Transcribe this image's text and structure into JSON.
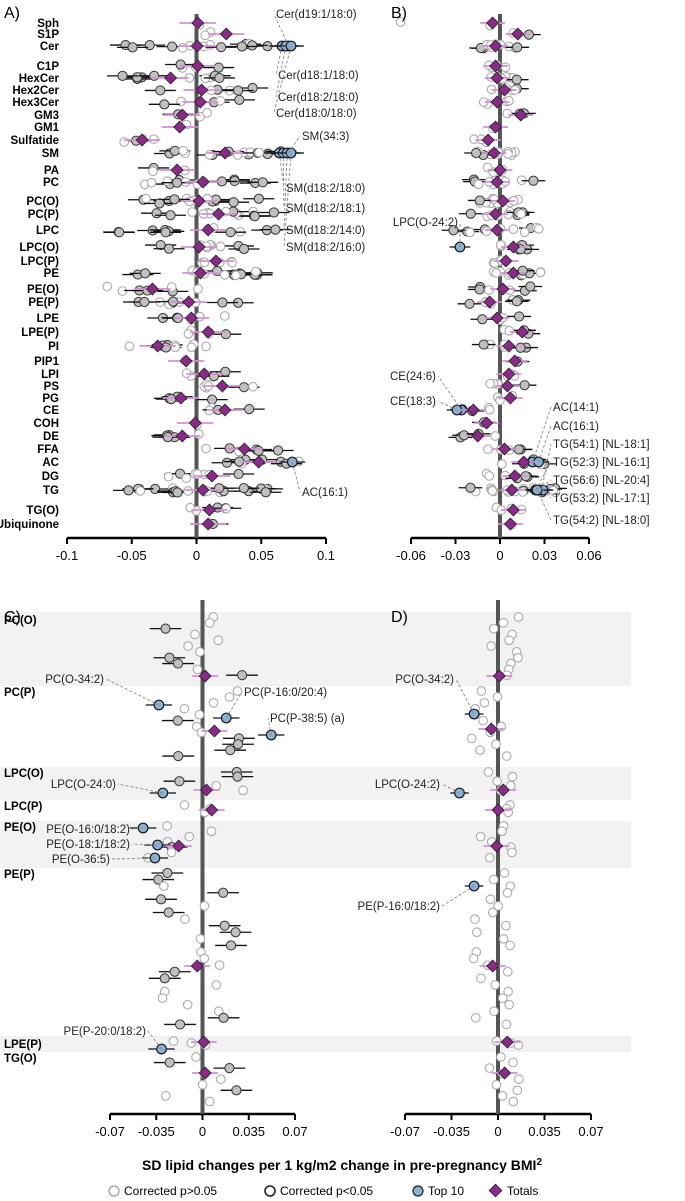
{
  "chart_data": {
    "type": "scatter",
    "title": "SD lipid changes per 1 kg/m2 change in pre-pregnancy BMI",
    "xlabel": "SD lipid changes per 1 kg/m2 change in pre-pregnancy BMI",
    "xlabel_sup": "2",
    "legend": [
      {
        "key": "ns",
        "label": "Corrected p>0.05"
      },
      {
        "key": "sig",
        "label": "Corrected p<0.05"
      },
      {
        "key": "top",
        "label": "Top 10"
      },
      {
        "key": "total",
        "label": "Totals"
      }
    ],
    "colors": {
      "top": "#8ab0d6",
      "sig": "#c0c0c0",
      "total": "#8b2a8b",
      "ci_total": "#d48fd4",
      "axis": "#555555"
    },
    "panels": [
      {
        "id": "A",
        "label": "A)",
        "xlim": [
          -0.1,
          0.1
        ],
        "xticks": [
          -0.1,
          -0.05,
          0,
          0.05,
          0.1
        ],
        "xtick_labels": [
          "-0.1",
          "-0.05",
          "0",
          "0.05",
          "0.1"
        ],
        "classes": [
          "Sph",
          "S1P",
          "Cer",
          "C1P",
          "HexCer",
          "Hex2Cer",
          "Hex3Cer",
          "GM3",
          "GM1",
          "Sulfatide",
          "SM",
          "PA",
          "PC",
          "PC(O)",
          "PC(P)",
          "LPC",
          "LPC(O)",
          "LPC(P)",
          "PE",
          "PE(O)",
          "PE(P)",
          "LPE",
          "LPE(P)",
          "PI",
          "PIP1",
          "LPI",
          "PS",
          "PG",
          "CE",
          "COH",
          "DE",
          "FFA",
          "AC",
          "DG",
          "TG",
          "TG(O)",
          "Ubiquinone"
        ],
        "totals": [
          0.001,
          0.023,
          0.0005,
          0.001,
          -0.02,
          0.004,
          0.003,
          -0.011,
          -0.013,
          -0.042,
          0.022,
          -0.015,
          0.005,
          0.002,
          0.017,
          0.009,
          0.002,
          0.015,
          0.003,
          -0.034,
          -0.006,
          -0.004,
          0.009,
          -0.03,
          -0.008,
          0.006,
          0.02,
          -0.012,
          0.022,
          -0.001,
          -0.011,
          0.037,
          0.048,
          0.012,
          0.005,
          0.01,
          0.009
        ],
        "spread": [
          0.004,
          0.03,
          0.06,
          0.03,
          0.04,
          0.04,
          0.035,
          0.02,
          0.01,
          0.02,
          0.05,
          0.035,
          0.05,
          0.05,
          0.05,
          0.07,
          0.04,
          0.02,
          0.05,
          0.04,
          0.04,
          0.03,
          0.02,
          0.04,
          0.005,
          0.02,
          0.03,
          0.025,
          0.02,
          0.005,
          0.02,
          0.03,
          0.035,
          0.035,
          0.06,
          0.015,
          0.005
        ],
        "counts": [
          1,
          2,
          14,
          4,
          10,
          6,
          5,
          3,
          1,
          4,
          16,
          3,
          14,
          14,
          14,
          12,
          10,
          5,
          16,
          8,
          10,
          6,
          5,
          9,
          1,
          4,
          6,
          4,
          4,
          1,
          5,
          6,
          8,
          8,
          24,
          5,
          1
        ],
        "highlights": [
          {
            "label": "Cer(d19:1/18:0)",
            "cls": "Cer",
            "x": 0.071
          },
          {
            "label": "Cer(d18:1/18:0)",
            "cls": "Cer",
            "x": 0.066
          },
          {
            "label": "Cer(d18:2/18:0)",
            "cls": "Cer",
            "x": 0.069
          },
          {
            "label": "Cer(d18:0/18:0)",
            "cls": "Cer",
            "x": 0.073
          },
          {
            "label": "SM(34:3)",
            "cls": "SM",
            "x": 0.071
          },
          {
            "label": "SM(d18:2/18:0)",
            "cls": "SM",
            "x": 0.064
          },
          {
            "label": "SM(d18:2/18:1)",
            "cls": "SM",
            "x": 0.067
          },
          {
            "label": "SM(d18:2/14:0)",
            "cls": "SM",
            "x": 0.07
          },
          {
            "label": "SM(d18:2/16:0)",
            "cls": "SM",
            "x": 0.073
          },
          {
            "label": "AC(16:1)",
            "cls": "AC",
            "x": 0.074
          }
        ]
      },
      {
        "id": "B",
        "label": "B)",
        "xlim": [
          -0.06,
          0.06
        ],
        "xticks": [
          -0.06,
          -0.03,
          0,
          0.03,
          0.06
        ],
        "xtick_labels": [
          "-0.06",
          "-0.03",
          "0",
          "0.03",
          "0.06"
        ],
        "totals": [
          -0.005,
          0.012,
          -0.003,
          -0.003,
          -0.002,
          0.003,
          -0.002,
          0.014,
          -0.003,
          -0.008,
          -0.004,
          0,
          -0.002,
          0.002,
          -0.003,
          -0.002,
          0.009,
          0.004,
          0.009,
          0.002,
          -0.007,
          -0.002,
          0.015,
          0.006,
          0.01,
          0.006,
          0.005,
          0.007,
          -0.018,
          -0.009,
          -0.015,
          0.003,
          0.016,
          0.01,
          0.008,
          0.009,
          0.007
        ],
        "spread": [
          0.004,
          0.01,
          0.015,
          0.01,
          0.015,
          0.01,
          0.01,
          0.01,
          0.004,
          0.01,
          0.015,
          0.01,
          0.025,
          0.02,
          0.02,
          0.03,
          0.02,
          0.012,
          0.02,
          0.02,
          0.02,
          0.015,
          0.015,
          0.02,
          0.005,
          0.012,
          0.012,
          0.012,
          0.012,
          0.004,
          0.012,
          0.02,
          0.02,
          0.02,
          0.03,
          0.012,
          0.005
        ],
        "counts": [
          1,
          2,
          10,
          4,
          8,
          5,
          4,
          3,
          1,
          3,
          12,
          3,
          12,
          12,
          12,
          12,
          8,
          4,
          12,
          6,
          8,
          5,
          4,
          7,
          1,
          3,
          5,
          3,
          4,
          1,
          4,
          5,
          6,
          6,
          20,
          4,
          1
        ],
        "highlights": [
          {
            "label": "LPC(O-24:2)",
            "cls": "LPC(O)",
            "x": -0.027
          },
          {
            "label": "CE(24:6)",
            "cls": "CE",
            "x": -0.026
          },
          {
            "label": "CE(18:3)",
            "cls": "CE",
            "x": -0.029
          },
          {
            "label": "AC(14:1)",
            "cls": "AC",
            "x": 0.022
          },
          {
            "label": "AC(16:1)",
            "cls": "AC",
            "x": 0.026
          },
          {
            "label": "TG(54:1) [NL-18:1]",
            "cls": "TG",
            "x": 0.028
          },
          {
            "label": "TG(52:3) [NL-16:1]",
            "cls": "TG",
            "x": 0.024
          },
          {
            "label": "TG(56:6) [NL-20:4]",
            "cls": "TG",
            "x": 0.026
          },
          {
            "label": "TG(53:2) [NL-17:1]",
            "cls": "TG",
            "x": 0.029
          },
          {
            "label": "TG(54:2) [NL-18:0]",
            "cls": "TG",
            "x": 0.025
          }
        ]
      },
      {
        "id": "C",
        "label": "C)",
        "xlim": [
          -0.07,
          0.07
        ],
        "xticks": [
          -0.07,
          -0.035,
          0,
          0.035,
          0.07
        ],
        "xtick_labels": [
          "-0.07",
          "-0.035",
          "0",
          "0.035",
          "0.07"
        ],
        "classes": [
          "PC(O)",
          "PC(P)",
          "LPC(O)",
          "LPC(P)",
          "PE(O)",
          "PE(P)",
          "LPE(P)",
          "TG(O)"
        ],
        "totals": [
          0.002,
          0.009,
          0.003,
          0.007,
          -0.018,
          -0.004,
          0.001,
          0.002
        ],
        "highlights": [
          {
            "label": "PC(O-34:2)",
            "cls": "PC(O)",
            "x": -0.033
          },
          {
            "label": "PC(P-16:0/20:4)",
            "cls": "PC(P)",
            "x": 0.018
          },
          {
            "label": "PC(P-38:5) (a)",
            "cls": "PC(P)",
            "x": 0.052
          },
          {
            "label": "LPC(O-24:0)",
            "cls": "LPC(O)",
            "x": -0.03
          },
          {
            "label": "PE(O-16:0/18:2)",
            "cls": "PE(O)",
            "x": -0.045
          },
          {
            "label": "PE(O-18:1/18:2)",
            "cls": "PE(O)",
            "x": -0.034
          },
          {
            "label": "PE(O-36:5)",
            "cls": "PE(O)",
            "x": -0.036
          },
          {
            "label": "PE(P-20:0/18:2)",
            "cls": "PE(P)",
            "x": -0.031
          }
        ]
      },
      {
        "id": "D",
        "label": "D)",
        "xlim": [
          -0.07,
          0.07
        ],
        "xticks": [
          -0.07,
          -0.035,
          0,
          0.035,
          0.07
        ],
        "xtick_labels": [
          "-0.07",
          "-0.035",
          "0",
          "0.035",
          "0.07"
        ],
        "totals": [
          0.001,
          -0.005,
          0.004,
          0,
          -0.001,
          -0.004,
          0.007,
          0.005
        ],
        "highlights": [
          {
            "label": "PC(O-34:2)",
            "cls": "PC(O)",
            "x": -0.018
          },
          {
            "label": "LPC(O-24:2)",
            "cls": "LPC(O)",
            "x": -0.029
          },
          {
            "label": "PE(P-16:0/18:2)",
            "cls": "PE(P)",
            "x": -0.018
          }
        ]
      }
    ]
  }
}
